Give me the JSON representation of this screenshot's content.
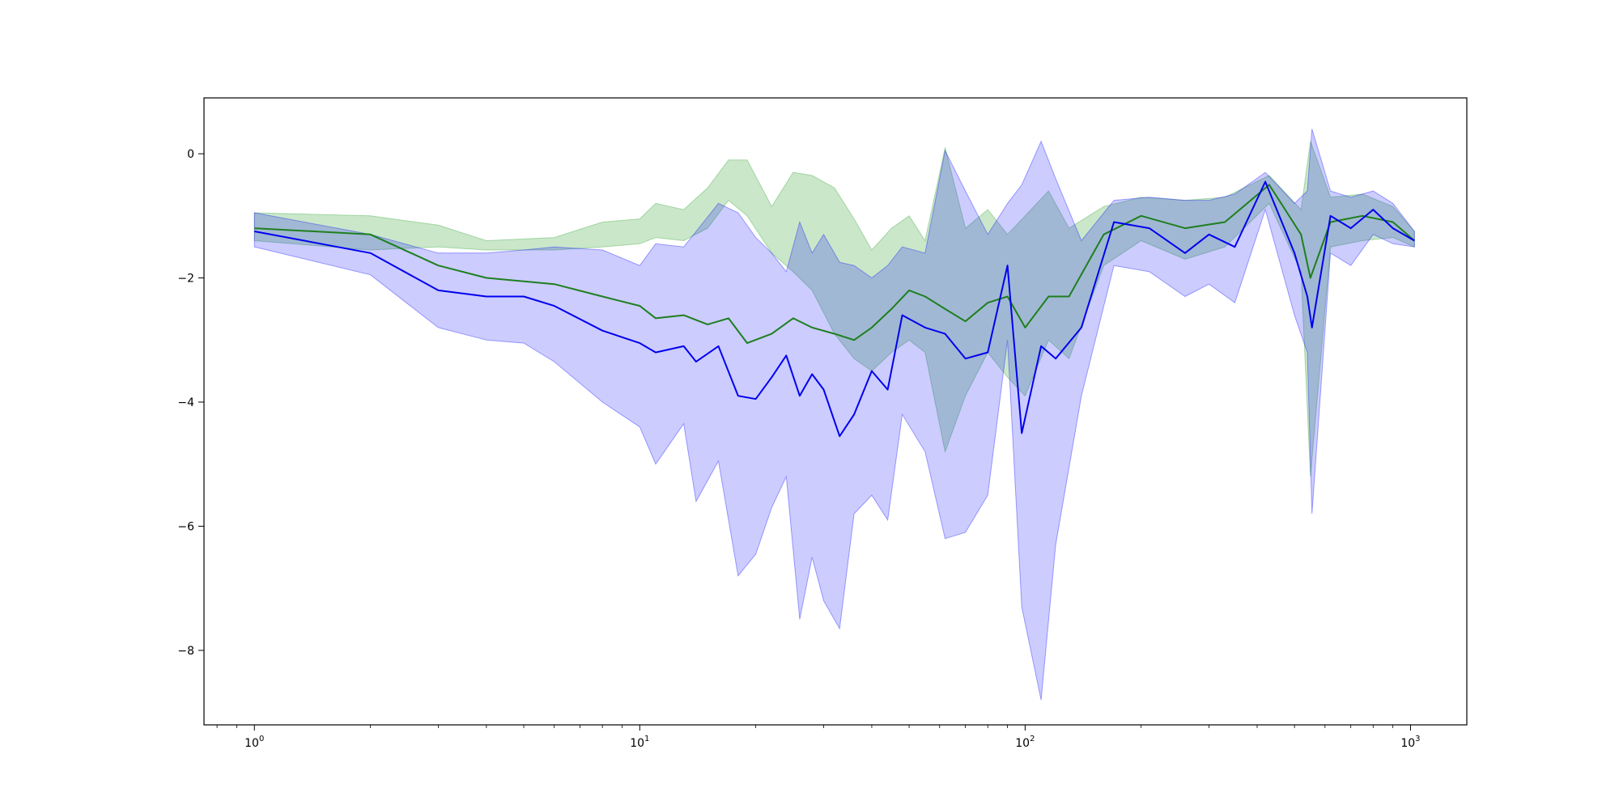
{
  "chart_data": {
    "type": "line",
    "title": "",
    "xlabel": "",
    "ylabel": "",
    "x_scale": "log",
    "xlim": [
      0.74,
      1400
    ],
    "ylim": [
      -9.2,
      0.9
    ],
    "grid": false,
    "legend": "none",
    "x_ticks": [
      {
        "value": 1,
        "base": "10",
        "exp": "0"
      },
      {
        "value": 10,
        "base": "10",
        "exp": "1"
      },
      {
        "value": 100,
        "base": "10",
        "exp": "2"
      },
      {
        "value": 1000,
        "base": "10",
        "exp": "3"
      }
    ],
    "y_ticks": [
      {
        "value": 0,
        "label": "0"
      },
      {
        "value": -2,
        "label": "−2"
      },
      {
        "value": -4,
        "label": "−4"
      },
      {
        "value": -6,
        "label": "−6"
      },
      {
        "value": -8,
        "label": "−8"
      }
    ],
    "series": [
      {
        "color": "#1e7f1e",
        "band_color": "#2ca02c",
        "band_opacity": 0.25,
        "points": [
          {
            "x": 1,
            "y": -1.2,
            "lo": -1.4,
            "hi": -0.95
          },
          {
            "x": 2,
            "y": -1.3,
            "lo": -1.55,
            "hi": -1.0
          },
          {
            "x": 3,
            "y": -1.8,
            "lo": -1.5,
            "hi": -1.15
          },
          {
            "x": 4,
            "y": -2.0,
            "lo": -1.55,
            "hi": -1.4
          },
          {
            "x": 6,
            "y": -2.1,
            "lo": -1.55,
            "hi": -1.35
          },
          {
            "x": 8,
            "y": -2.3,
            "lo": -1.5,
            "hi": -1.1
          },
          {
            "x": 10,
            "y": -2.45,
            "lo": -1.45,
            "hi": -1.05
          },
          {
            "x": 11,
            "y": -2.65,
            "lo": -1.35,
            "hi": -0.8
          },
          {
            "x": 13,
            "y": -2.6,
            "lo": -1.4,
            "hi": -0.9
          },
          {
            "x": 15,
            "y": -2.75,
            "lo": -1.2,
            "hi": -0.55
          },
          {
            "x": 17,
            "y": -2.65,
            "lo": -0.75,
            "hi": -0.1
          },
          {
            "x": 19,
            "y": -3.05,
            "lo": -1.0,
            "hi": -0.1
          },
          {
            "x": 22,
            "y": -2.9,
            "lo": -1.6,
            "hi": -0.85
          },
          {
            "x": 25,
            "y": -2.65,
            "lo": -1.9,
            "hi": -0.3
          },
          {
            "x": 28,
            "y": -2.8,
            "lo": -2.2,
            "hi": -0.35
          },
          {
            "x": 32,
            "y": -2.9,
            "lo": -2.9,
            "hi": -0.55
          },
          {
            "x": 36,
            "y": -3.0,
            "lo": -3.3,
            "hi": -1.05
          },
          {
            "x": 40,
            "y": -2.8,
            "lo": -3.5,
            "hi": -1.55
          },
          {
            "x": 45,
            "y": -2.5,
            "lo": -3.2,
            "hi": -1.2
          },
          {
            "x": 50,
            "y": -2.2,
            "lo": -3.0,
            "hi": -1.0
          },
          {
            "x": 55,
            "y": -2.3,
            "lo": -3.2,
            "hi": -1.4
          },
          {
            "x": 62,
            "y": -2.5,
            "lo": -4.8,
            "hi": 0.1
          },
          {
            "x": 70,
            "y": -2.7,
            "lo": -3.9,
            "hi": -1.2
          },
          {
            "x": 80,
            "y": -2.4,
            "lo": -3.2,
            "hi": -0.9
          },
          {
            "x": 90,
            "y": -2.3,
            "lo": -3.6,
            "hi": -1.3
          },
          {
            "x": 100,
            "y": -2.8,
            "lo": -3.9,
            "hi": -1.0
          },
          {
            "x": 115,
            "y": -2.3,
            "lo": -3.0,
            "hi": -0.6
          },
          {
            "x": 130,
            "y": -2.3,
            "lo": -3.3,
            "hi": -1.2
          },
          {
            "x": 160,
            "y": -1.3,
            "lo": -1.8,
            "hi": -0.85
          },
          {
            "x": 200,
            "y": -1.0,
            "lo": -1.4,
            "hi": -0.7
          },
          {
            "x": 260,
            "y": -1.2,
            "lo": -1.7,
            "hi": -0.75
          },
          {
            "x": 330,
            "y": -1.1,
            "lo": -1.5,
            "hi": -0.7
          },
          {
            "x": 430,
            "y": -0.5,
            "lo": -0.8,
            "hi": -0.35
          },
          {
            "x": 520,
            "y": -1.3,
            "lo": -1.9,
            "hi": -0.9
          },
          {
            "x": 550,
            "y": -2.0,
            "lo": -5.2,
            "hi": 0.2
          },
          {
            "x": 620,
            "y": -1.1,
            "lo": -1.5,
            "hi": -0.7
          },
          {
            "x": 750,
            "y": -1.0,
            "lo": -1.4,
            "hi": -0.65
          },
          {
            "x": 900,
            "y": -1.1,
            "lo": -1.35,
            "hi": -0.85
          },
          {
            "x": 1024,
            "y": -1.4,
            "lo": -1.5,
            "hi": -1.25
          }
        ]
      },
      {
        "color": "#0000ee",
        "band_color": "#0000ff",
        "band_opacity": 0.2,
        "points": [
          {
            "x": 1,
            "y": -1.25,
            "lo": -1.5,
            "hi": -0.95
          },
          {
            "x": 2,
            "y": -1.6,
            "lo": -1.95,
            "hi": -1.3
          },
          {
            "x": 3,
            "y": -2.2,
            "lo": -2.8,
            "hi": -1.6
          },
          {
            "x": 4,
            "y": -2.3,
            "lo": -3.0,
            "hi": -1.6
          },
          {
            "x": 5,
            "y": -2.3,
            "lo": -3.05,
            "hi": -1.55
          },
          {
            "x": 6,
            "y": -2.45,
            "lo": -3.35,
            "hi": -1.5
          },
          {
            "x": 8,
            "y": -2.85,
            "lo": -4.0,
            "hi": -1.55
          },
          {
            "x": 10,
            "y": -3.05,
            "lo": -4.4,
            "hi": -1.8
          },
          {
            "x": 11,
            "y": -3.2,
            "lo": -5.0,
            "hi": -1.45
          },
          {
            "x": 13,
            "y": -3.1,
            "lo": -4.35,
            "hi": -1.5
          },
          {
            "x": 14,
            "y": -3.35,
            "lo": -5.6,
            "hi": -1.25
          },
          {
            "x": 16,
            "y": -3.1,
            "lo": -4.95,
            "hi": -0.8
          },
          {
            "x": 18,
            "y": -3.9,
            "lo": -6.8,
            "hi": -0.95
          },
          {
            "x": 20,
            "y": -3.95,
            "lo": -6.45,
            "hi": -1.35
          },
          {
            "x": 22,
            "y": -3.6,
            "lo": -5.7,
            "hi": -1.6
          },
          {
            "x": 24,
            "y": -3.25,
            "lo": -5.2,
            "hi": -1.9
          },
          {
            "x": 26,
            "y": -3.9,
            "lo": -7.5,
            "hi": -1.1
          },
          {
            "x": 28,
            "y": -3.55,
            "lo": -6.5,
            "hi": -1.6
          },
          {
            "x": 30,
            "y": -3.8,
            "lo": -7.2,
            "hi": -1.3
          },
          {
            "x": 33,
            "y": -4.55,
            "lo": -7.65,
            "hi": -1.75
          },
          {
            "x": 36,
            "y": -4.2,
            "lo": -5.8,
            "hi": -1.8
          },
          {
            "x": 40,
            "y": -3.5,
            "lo": -5.5,
            "hi": -2.0
          },
          {
            "x": 44,
            "y": -3.8,
            "lo": -5.9,
            "hi": -1.8
          },
          {
            "x": 48,
            "y": -2.6,
            "lo": -4.2,
            "hi": -1.5
          },
          {
            "x": 55,
            "y": -2.8,
            "lo": -4.8,
            "hi": -1.6
          },
          {
            "x": 62,
            "y": -2.9,
            "lo": -6.2,
            "hi": 0.05
          },
          {
            "x": 70,
            "y": -3.3,
            "lo": -6.1,
            "hi": -0.6
          },
          {
            "x": 80,
            "y": -3.2,
            "lo": -5.5,
            "hi": -1.3
          },
          {
            "x": 90,
            "y": -1.8,
            "lo": -3.0,
            "hi": -0.8
          },
          {
            "x": 98,
            "y": -4.5,
            "lo": -7.3,
            "hi": -0.5
          },
          {
            "x": 110,
            "y": -3.1,
            "lo": -8.8,
            "hi": 0.2
          },
          {
            "x": 120,
            "y": -3.3,
            "lo": -6.3,
            "hi": -0.4
          },
          {
            "x": 140,
            "y": -2.8,
            "lo": -3.9,
            "hi": -1.4
          },
          {
            "x": 170,
            "y": -1.1,
            "lo": -1.8,
            "hi": -0.75
          },
          {
            "x": 210,
            "y": -1.2,
            "lo": -1.9,
            "hi": -0.7
          },
          {
            "x": 260,
            "y": -1.6,
            "lo": -2.3,
            "hi": -0.75
          },
          {
            "x": 300,
            "y": -1.3,
            "lo": -2.1,
            "hi": -0.75
          },
          {
            "x": 350,
            "y": -1.5,
            "lo": -2.4,
            "hi": -0.65
          },
          {
            "x": 420,
            "y": -0.45,
            "lo": -0.9,
            "hi": -0.3
          },
          {
            "x": 500,
            "y": -1.6,
            "lo": -2.6,
            "hi": -0.8
          },
          {
            "x": 540,
            "y": -2.3,
            "lo": -3.2,
            "hi": -0.6
          },
          {
            "x": 555,
            "y": -2.8,
            "lo": -5.8,
            "hi": 0.4
          },
          {
            "x": 620,
            "y": -1.0,
            "lo": -1.6,
            "hi": -0.6
          },
          {
            "x": 700,
            "y": -1.2,
            "lo": -1.8,
            "hi": -0.7
          },
          {
            "x": 800,
            "y": -0.9,
            "lo": -1.3,
            "hi": -0.6
          },
          {
            "x": 900,
            "y": -1.2,
            "lo": -1.45,
            "hi": -0.8
          },
          {
            "x": 1024,
            "y": -1.4,
            "lo": -1.5,
            "hi": -1.25
          }
        ]
      }
    ]
  }
}
